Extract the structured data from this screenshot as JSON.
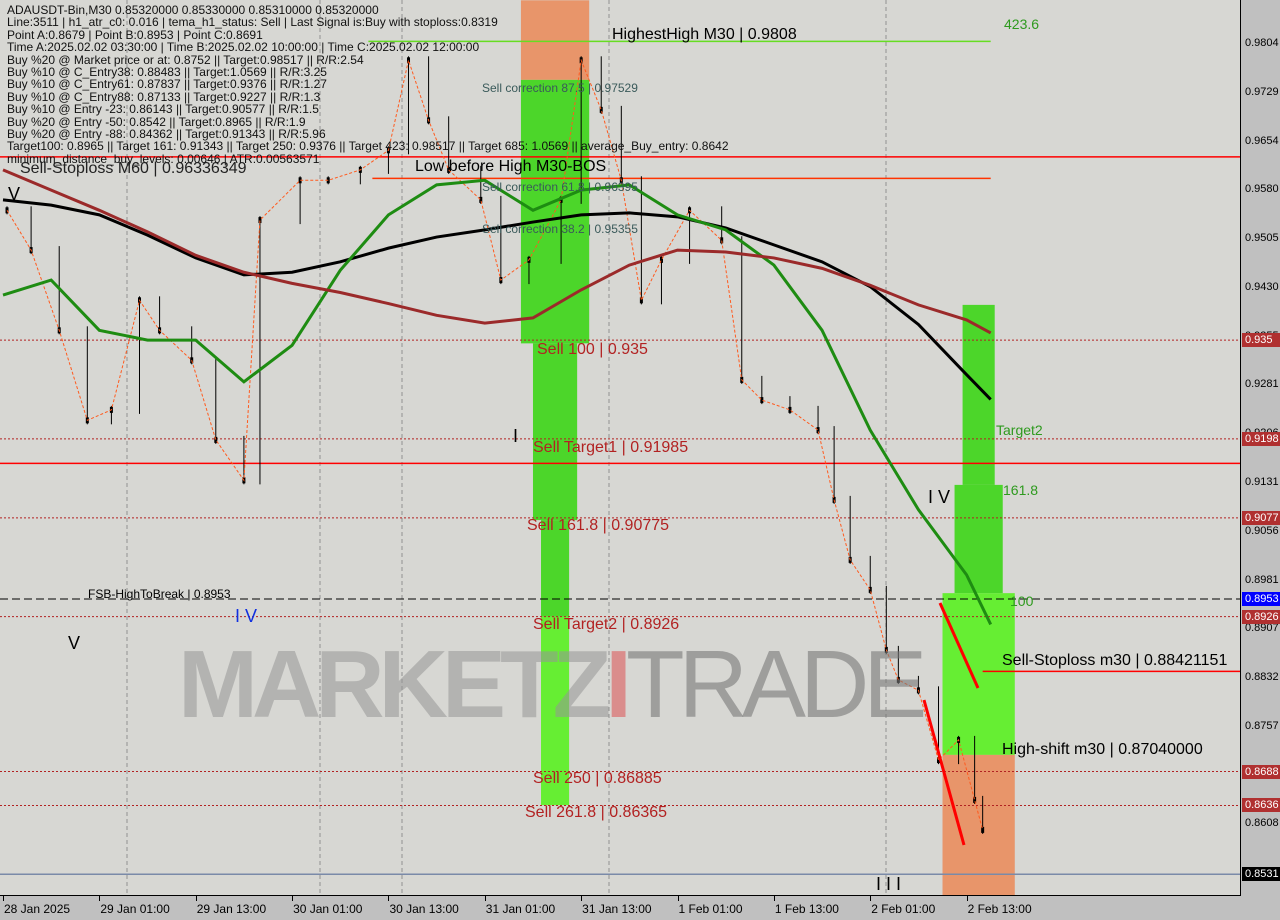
{
  "header": {
    "symbol_line": "ADAUSDT-Bin,M30  0.85320000 0.85330000 0.85310000 0.85320000",
    "lines": [
      "Line:3511 | h1_atr_c0: 0.016 | tema_h1_status: Sell | Last Signal is:Buy with stoploss:0.8319",
      "Point A:0.8679 | Point B:0.8953 | Point C:0.8691",
      "Time A:2025.02.02 03:30:00 | Time B:2025.02.02 10:00:00 | Time C:2025.02.02 12:00:00",
      "Buy %20 @ Market price or at: 0.8752 || Target:0.98517 || R/R:2.54",
      "Buy %10 @ C_Entry38: 0.88483 || Target:1.0569 || R/R:3.25",
      "Buy %10 @ C_Entry61: 0.87837 || Target:0.9376 || R/R:1.27",
      "Buy %10 @ C_Entry88: 0.87133 || Target:0.9227 || R/R:1.3",
      "Buy %10 @ Entry -23: 0.86143 || Target:0.90577 || R/R:1.5",
      "Buy %20 @ Entry -50: 0.8542 || Target:0.8965 || R/R:1.9",
      "Buy %20 @ Entry -88: 0.84362 || Target:0.91343 || R/R:5.96",
      "Target100: 0.8965 || Target 161: 0.91343 || Target 250: 0.9376 || Target 423: 0.98517 || Target 685: 1.0569 || average_Buy_entry: 0.8642",
      "minimum_distance_buy_levels: 0.00646 | ATR:0.00563571"
    ]
  },
  "labels": {
    "highest_high": "HighestHigh   M30 | 0.9808",
    "fib_423": "423.6",
    "sell_corr_875": "Sell correction 87.5 | 0.97529",
    "sell_stoploss_m60": "Sell-Stoploss M60 | 0.96336349",
    "low_before_high": "Low before High  M30-BOS",
    "sell_corr_618": "Sell correction 61.8 | 0.96395",
    "sell_corr_382": "Sell correction 38.2 | 0.95355",
    "sell_100": "Sell 100 | 0.935",
    "target2": "Target2",
    "sell_target1": "Sell Target1 | 0.91985",
    "fib_161": "161.8",
    "sell_1618": "Sell 161.8 | 0.90775",
    "fsb": "FSB-HighToBreak | 0.8953",
    "fib_100": "100",
    "sell_target2": "Sell Target2 | 0.8926",
    "sell_stoploss_m30": "Sell-Stoploss m30 | 0.88421151",
    "high_shift": "High-shift m30 | 0.87040000",
    "sell_250": "Sell  250 | 0.86885",
    "sell_2618": "Sell  261.8 | 0.86365",
    "roman_v1": "V",
    "roman_v2": "V",
    "roman_iv1": "I V",
    "roman_iv2": "I V",
    "roman_iii": "I I I",
    "roman_i": "I"
  },
  "watermark": {
    "part1": "MARKETZ",
    "part2": "I",
    "part3": "TRADE"
  },
  "colors": {
    "background": "#d7d7d3",
    "black_ma": "#000000",
    "green_ma": "#1e8c12",
    "red_ma": "#9b2a2a",
    "zone_green": "#4cd62a",
    "zone_light_green": "#66ee33",
    "zone_orange": "#e8956a",
    "level_red": "#ff0000",
    "level_dashed": "#b22222",
    "fsb_blue": "#0000ff"
  },
  "chart_data": {
    "type": "candlestick",
    "symbol": "ADAUSDT-Bin",
    "timeframe": "M30",
    "ylim": [
      0.8499,
      0.9871
    ],
    "y_ticks": [
      "0.9804",
      "0.9729",
      "0.9654",
      "0.9580",
      "0.9505",
      "0.9430",
      "0.9355",
      "0.9281",
      "0.9206",
      "0.9131",
      "0.9056",
      "0.8981",
      "0.8907",
      "0.8832",
      "0.8757",
      "0.8682",
      "0.8608"
    ],
    "x_ticks": [
      {
        "t": "2025-01-28 13:00",
        "label": "28 Jan 2025"
      },
      {
        "t": "2025-01-29 01:00",
        "label": "29 Jan 01:00"
      },
      {
        "t": "2025-01-29 13:00",
        "label": "29 Jan 13:00"
      },
      {
        "t": "2025-01-30 01:00",
        "label": "30 Jan 01:00"
      },
      {
        "t": "2025-01-30 13:00",
        "label": "30 Jan 13:00"
      },
      {
        "t": "2025-01-31 01:00",
        "label": "31 Jan 01:00"
      },
      {
        "t": "2025-01-31 13:00",
        "label": "31 Jan 13:00"
      },
      {
        "t": "2025-02-01 01:00",
        "label": "1 Feb 01:00"
      },
      {
        "t": "2025-02-01 13:00",
        "label": "1 Feb 13:00"
      },
      {
        "t": "2025-02-02 01:00",
        "label": "2 Feb 01:00"
      },
      {
        "t": "2025-02-02 13:00",
        "label": "2 Feb 13:00"
      }
    ],
    "price_path": [
      [
        "2025-01-28 13:30",
        0.9549
      ],
      [
        "2025-01-28 16:30",
        0.9488
      ],
      [
        "2025-01-28 20:00",
        0.9365
      ],
      [
        "2025-01-28 23:30",
        0.9227
      ],
      [
        "2025-01-29 02:30",
        0.9243
      ],
      [
        "2025-01-29 06:00",
        0.9411
      ],
      [
        "2025-01-29 08:30",
        0.9365
      ],
      [
        "2025-01-29 12:30",
        0.9319
      ],
      [
        "2025-01-29 15:30",
        0.9197
      ],
      [
        "2025-01-29 19:00",
        0.9135
      ],
      [
        "2025-01-29 21:00",
        0.9534
      ],
      [
        "2025-01-30 02:00",
        0.9595
      ],
      [
        "2025-01-30 05:30",
        0.9595
      ],
      [
        "2025-01-30 09:30",
        0.9611
      ],
      [
        "2025-01-30 13:00",
        0.9641
      ],
      [
        "2025-01-30 15:30",
        0.9779
      ],
      [
        "2025-01-30 18:00",
        0.9687
      ],
      [
        "2025-01-30 20:30",
        0.9611
      ],
      [
        "2025-01-31 00:30",
        0.9565
      ],
      [
        "2025-01-31 03:00",
        0.9442
      ],
      [
        "2025-01-31 06:30",
        0.9473
      ],
      [
        "2025-01-31 10:30",
        0.9565
      ],
      [
        "2025-01-31 13:00",
        0.9779
      ],
      [
        "2025-01-31 15:30",
        0.9703
      ],
      [
        "2025-01-31 18:00",
        0.9595
      ],
      [
        "2025-01-31 20:30",
        0.9411
      ],
      [
        "2025-01-31 23:00",
        0.9473
      ],
      [
        "2025-02-01 02:30",
        0.9549
      ],
      [
        "2025-02-01 06:30",
        0.9503
      ],
      [
        "2025-02-01 09:00",
        0.9289
      ],
      [
        "2025-02-01 11:30",
        0.9258
      ],
      [
        "2025-02-01 15:00",
        0.9243
      ],
      [
        "2025-02-01 18:30",
        0.9212
      ],
      [
        "2025-02-01 20:30",
        0.9105
      ],
      [
        "2025-02-01 22:30",
        0.9013
      ],
      [
        "2025-02-02 01:00",
        0.8967
      ],
      [
        "2025-02-02 03:00",
        0.8875
      ],
      [
        "2025-02-02 04:30",
        0.8829
      ],
      [
        "2025-02-02 07:00",
        0.8813
      ],
      [
        "2025-02-02 09:30",
        0.8706
      ],
      [
        "2025-02-02 12:00",
        0.8737
      ],
      [
        "2025-02-02 14:00",
        0.8645
      ],
      [
        "2025-02-02 15:00",
        0.8599
      ]
    ],
    "ma_times": [
      "2025-01-28 13:00",
      "2025-01-28 19:00",
      "2025-01-29 01:00",
      "2025-01-29 07:00",
      "2025-01-29 13:00",
      "2025-01-29 19:00",
      "2025-01-30 01:00",
      "2025-01-30 07:00",
      "2025-01-30 13:00",
      "2025-01-30 19:00",
      "2025-01-31 01:00",
      "2025-01-31 07:00",
      "2025-01-31 13:00",
      "2025-01-31 19:00",
      "2025-02-01 01:00",
      "2025-02-01 07:00",
      "2025-02-01 13:00",
      "2025-02-01 19:00",
      "2025-02-02 01:00",
      "2025-02-02 07:00",
      "2025-02-02 13:00",
      "2025-02-02 16:00"
    ],
    "series": [
      {
        "color_key": "black_ma",
        "values": [
          0.9565,
          0.9557,
          0.9542,
          0.9511,
          0.9476,
          0.945,
          0.9454,
          0.947,
          0.9491,
          0.9508,
          0.9519,
          0.9531,
          0.9542,
          0.9545,
          0.9539,
          0.9522,
          0.9496,
          0.947,
          0.9432,
          0.9374,
          0.9297,
          0.9259
        ]
      },
      {
        "color_key": "green_ma",
        "values": [
          0.9419,
          0.9442,
          0.9365,
          0.935,
          0.935,
          0.9286,
          0.9342,
          0.9457,
          0.9542,
          0.9588,
          0.9595,
          0.9549,
          0.958,
          0.9588,
          0.9542,
          0.9519,
          0.9465,
          0.9365,
          0.9212,
          0.909,
          0.899,
          0.8914
        ]
      },
      {
        "color_key": "red_ma",
        "values": [
          0.9611,
          0.958,
          0.9549,
          0.9516,
          0.948,
          0.9454,
          0.9437,
          0.9423,
          0.9406,
          0.9388,
          0.9376,
          0.9384,
          0.9427,
          0.9465,
          0.9488,
          0.9485,
          0.9476,
          0.946,
          0.9434,
          0.9404,
          0.9381,
          0.9361
        ]
      }
    ],
    "zones": [
      {
        "from": "2025-01-31 05:30",
        "to": "2025-01-31 14:00",
        "top": 0.9871,
        "bottom": 0.9749,
        "color_key": "zone_orange"
      },
      {
        "from": "2025-01-31 05:30",
        "to": "2025-01-31 14:00",
        "top": 0.9749,
        "bottom": 0.9345,
        "color_key": "zone_green"
      },
      {
        "from": "2025-01-31 07:00",
        "to": "2025-01-31 12:30",
        "top": 0.9345,
        "bottom": 0.9074,
        "color_key": "zone_green"
      },
      {
        "from": "2025-01-31 08:00",
        "to": "2025-01-31 11:30",
        "top": 0.9074,
        "bottom": 0.8926,
        "color_key": "zone_green"
      },
      {
        "from": "2025-01-31 08:00",
        "to": "2025-01-31 11:30",
        "top": 0.8926,
        "bottom": 0.8637,
        "color_key": "zone_light_green"
      },
      {
        "from": "2025-02-02 12:30",
        "to": "2025-02-02 16:30",
        "top": 0.9404,
        "bottom": 0.9128,
        "color_key": "zone_green"
      },
      {
        "from": "2025-02-02 11:30",
        "to": "2025-02-02 17:30",
        "top": 0.9128,
        "bottom": 0.8962,
        "color_key": "zone_green"
      },
      {
        "from": "2025-02-02 10:00",
        "to": "2025-02-02 19:00",
        "top": 0.8962,
        "bottom": 0.8714,
        "color_key": "zone_light_green"
      },
      {
        "from": "2025-02-02 10:00",
        "to": "2025-02-02 19:00",
        "top": 0.8714,
        "bottom": 0.8499,
        "color_key": "zone_orange"
      }
    ],
    "levels": [
      {
        "price": 0.9808,
        "style": "solid",
        "color": "#66dd22",
        "from": "2025-01-30 10:30",
        "to": "2025-02-02 16:00"
      },
      {
        "price": 0.9631,
        "style": "solid",
        "color": "#ff0000"
      },
      {
        "price": 0.9598,
        "style": "solid",
        "color": "#ff3300",
        "from": "2025-01-30 11:00",
        "to": "2025-02-02 16:00"
      },
      {
        "price": 0.935,
        "style": "dashed",
        "color": "#b22222",
        "box": "0.935"
      },
      {
        "price": 0.91985,
        "style": "dashed",
        "color": "#b22222",
        "box": "0.9198"
      },
      {
        "price": 0.9161,
        "style": "solid",
        "color": "#ff0000"
      },
      {
        "price": 0.90775,
        "style": "dashed",
        "color": "#b22222",
        "box": "0.9077"
      },
      {
        "price": 0.8953,
        "style": "dashed",
        "color": "#000000",
        "box": "0.8953",
        "box_color": "#0000ff"
      },
      {
        "price": 0.8926,
        "style": "dashed",
        "color": "#b22222",
        "box": "0.8926"
      },
      {
        "price": 0.88421151,
        "style": "solid",
        "color": "#ff0000",
        "from": "2025-02-02 15:00"
      },
      {
        "price": 0.86885,
        "style": "dashed",
        "color": "#b22222",
        "box": "0.8688"
      },
      {
        "price": 0.86365,
        "style": "dashed",
        "color": "#b22222",
        "box": "0.8636"
      },
      {
        "price": 0.8531,
        "style": "solid",
        "color": "#7a8aa8",
        "box": "0.8531",
        "box_color": "#000000"
      }
    ]
  }
}
